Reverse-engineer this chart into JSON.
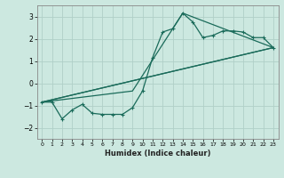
{
  "xlabel": "Humidex (Indice chaleur)",
  "bg_color": "#cce8e0",
  "grid_color": "#b0cfc8",
  "line_color": "#1a6b5a",
  "xlim": [
    -0.5,
    23.5
  ],
  "ylim": [
    -2.5,
    3.5
  ],
  "yticks": [
    -2,
    -1,
    0,
    1,
    2,
    3
  ],
  "xticks": [
    0,
    1,
    2,
    3,
    4,
    5,
    6,
    7,
    8,
    9,
    10,
    11,
    12,
    13,
    14,
    15,
    16,
    17,
    18,
    19,
    20,
    21,
    22,
    23
  ],
  "curve1_x": [
    0,
    1,
    2,
    3,
    4,
    5,
    6,
    7,
    8,
    9,
    10,
    11,
    12,
    13,
    14,
    15,
    16,
    17,
    18,
    19,
    20,
    21,
    22,
    23
  ],
  "curve1_y": [
    -0.85,
    -0.85,
    -1.6,
    -1.2,
    -0.95,
    -1.35,
    -1.4,
    -1.4,
    -1.4,
    -1.1,
    -0.35,
    1.15,
    2.3,
    2.45,
    3.15,
    2.75,
    2.05,
    2.15,
    2.35,
    2.35,
    2.3,
    2.05,
    2.05,
    1.6
  ],
  "line2_x": [
    0,
    9,
    14,
    23
  ],
  "line2_y": [
    -0.85,
    -0.35,
    3.15,
    1.6
  ],
  "line3_x": [
    0,
    23
  ],
  "line3_y": [
    -0.85,
    1.6
  ],
  "line4_x": [
    0,
    23
  ],
  "line4_y": [
    -0.85,
    1.6
  ]
}
